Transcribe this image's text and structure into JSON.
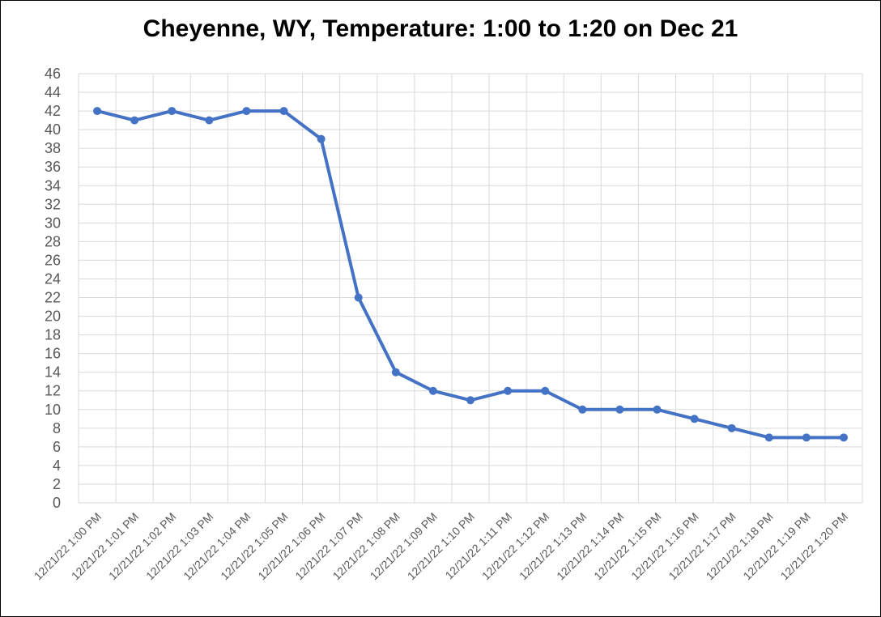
{
  "chart_data": {
    "type": "line",
    "title": "Cheyenne, WY, Temperature: 1:00 to 1:20 on Dec 21",
    "xlabel": "",
    "ylabel": "",
    "categories": [
      "12/21/22 1:00 PM",
      "12/21/22 1:01 PM",
      "12/21/22 1:02 PM",
      "12/21/22 1:03 PM",
      "12/21/22 1:04 PM",
      "12/21/22 1:05 PM",
      "12/21/22 1:06 PM",
      "12/21/22 1:07 PM",
      "12/21/22 1:08 PM",
      "12/21/22 1:09 PM",
      "12/21/22 1:10 PM",
      "12/21/22 1:11 PM",
      "12/21/22 1:12 PM",
      "12/21/22 1:13 PM",
      "12/21/22 1:14 PM",
      "12/21/22 1:15 PM",
      "12/21/22 1:16 PM",
      "12/21/22 1:17 PM",
      "12/21/22 1:18 PM",
      "12/21/22 1:19 PM",
      "12/21/22 1:20 PM"
    ],
    "series": [
      {
        "values": [
          42,
          41,
          42,
          41,
          42,
          42,
          39,
          22,
          14,
          12,
          11,
          12,
          12,
          10,
          10,
          10,
          9,
          8,
          7,
          7,
          7
        ],
        "color": "#4472C4"
      }
    ],
    "ylim": [
      0,
      46
    ],
    "ytick_step": 2,
    "grid": true,
    "legend": "none"
  }
}
